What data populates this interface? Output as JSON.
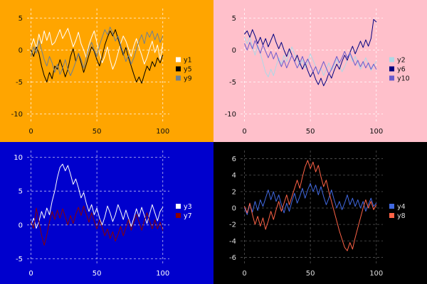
{
  "shared_x": [
    0,
    2,
    4,
    6,
    8,
    10,
    12,
    14,
    16,
    18,
    20,
    22,
    24,
    26,
    28,
    30,
    32,
    34,
    36,
    38,
    40,
    42,
    44,
    46,
    48,
    50,
    52,
    54,
    56,
    58,
    60,
    62,
    64,
    66,
    68,
    70,
    72,
    74,
    76,
    78,
    80,
    82,
    84,
    86,
    88,
    90,
    92,
    94,
    96,
    98,
    100
  ],
  "chart_data": [
    {
      "type": "line",
      "position": "top-left",
      "title": "",
      "xlabel": "",
      "ylabel": "",
      "bg": "#FFA500",
      "grid_color": "rgba(255,255,255,0.9)",
      "tick_color": "#111111",
      "legend_text_color": "#111111",
      "xlim": [
        -3,
        105
      ],
      "ylim": [
        -11.5,
        6.5
      ],
      "xticks": [
        0,
        50,
        100
      ],
      "yticks": [
        5,
        0,
        -5,
        -10
      ],
      "grid": true,
      "legend_position": "right",
      "series": [
        {
          "name": "y1",
          "color": "#FFFFFF",
          "values": [
            0.5,
            1.8,
            0.2,
            2.5,
            1.0,
            3.0,
            1.5,
            2.8,
            0.8,
            1.2,
            2.2,
            3.2,
            1.8,
            2.6,
            3.4,
            2.0,
            0.5,
            1.5,
            2.8,
            1.0,
            0.0,
            -1.2,
            0.8,
            2.0,
            3.0,
            1.2,
            -0.5,
            -2.0,
            -1.0,
            0.5,
            -1.5,
            -3.0,
            -2.0,
            -0.5,
            1.0,
            2.2,
            1.4,
            0.2,
            -1.0,
            0.6,
            1.8,
            0.4,
            -0.8,
            -2.2,
            -1.2,
            0.2,
            1.4,
            -0.4,
            0.8,
            -1.5,
            1.0
          ]
        },
        {
          "name": "y5",
          "color": "#000000",
          "values": [
            0.0,
            -1.0,
            0.5,
            -0.5,
            -2.5,
            -4.0,
            -5.0,
            -3.5,
            -4.5,
            -2.5,
            -3.0,
            -1.5,
            -2.8,
            -4.2,
            -3.0,
            -1.0,
            0.2,
            -1.8,
            -0.5,
            -2.0,
            -3.5,
            -2.2,
            -0.8,
            0.5,
            -0.2,
            -1.5,
            -2.5,
            -1.0,
            0.8,
            2.0,
            3.0,
            2.2,
            3.2,
            1.8,
            0.5,
            -0.8,
            0.4,
            -1.2,
            -2.5,
            -3.8,
            -5.0,
            -4.2,
            -5.2,
            -3.8,
            -2.5,
            -3.2,
            -1.8,
            -2.6,
            -1.2,
            -2.0,
            -0.8
          ]
        },
        {
          "name": "y9",
          "color": "#708090",
          "values": [
            -1.0,
            0.5,
            -0.5,
            1.5,
            0.0,
            -1.5,
            -2.5,
            -1.0,
            -2.0,
            -3.5,
            -2.2,
            -3.8,
            -2.8,
            -1.5,
            -3.0,
            -4.0,
            -3.0,
            -1.8,
            -0.5,
            -1.5,
            -2.8,
            -1.2,
            0.2,
            1.2,
            0.0,
            -1.0,
            0.8,
            2.0,
            3.2,
            2.4,
            3.6,
            2.6,
            1.4,
            2.2,
            0.8,
            -0.5,
            -1.8,
            -0.8,
            -2.2,
            -1.2,
            0.2,
            1.4,
            2.4,
            1.0,
            2.8,
            2.0,
            3.0,
            1.6,
            2.6,
            1.2,
            2.2
          ]
        }
      ]
    },
    {
      "type": "line",
      "position": "top-right",
      "title": "",
      "xlabel": "",
      "ylabel": "",
      "bg": "#FFC0CB",
      "grid_color": "rgba(255,255,255,0.95)",
      "tick_color": "#111111",
      "legend_text_color": "#111111",
      "xlim": [
        -3,
        105
      ],
      "ylim": [
        -11.5,
        6.5
      ],
      "xticks": [
        0,
        50,
        100
      ],
      "yticks": [
        5,
        0,
        -5,
        -10
      ],
      "grid": true,
      "legend_position": "right",
      "series": [
        {
          "name": "y2",
          "color": "#ADD8E6",
          "values": [
            2.0,
            1.0,
            2.2,
            0.5,
            -0.8,
            0.8,
            -0.5,
            -2.0,
            -3.5,
            -4.2,
            -3.0,
            -4.0,
            -2.5,
            -1.2,
            -2.2,
            -0.8,
            -1.8,
            -0.5,
            0.5,
            -0.6,
            -1.5,
            -2.5,
            -1.5,
            -2.8,
            -1.8,
            -0.6,
            -1.6,
            -2.6,
            -3.6,
            -2.8,
            -4.0,
            -3.0,
            -2.0,
            -3.2,
            -2.4,
            -1.4,
            -2.4,
            -3.4,
            -2.6,
            -1.6,
            -0.6,
            -1.8,
            -1.0,
            -2.0,
            -3.0,
            -2.2,
            -1.2,
            -2.2,
            -3.2,
            -2.4,
            -1.8
          ]
        },
        {
          "name": "y6",
          "color": "#000080",
          "values": [
            2.5,
            3.0,
            2.0,
            3.2,
            2.2,
            1.0,
            2.0,
            0.8,
            1.8,
            0.5,
            1.5,
            2.5,
            1.2,
            0.2,
            1.2,
            0.0,
            -1.0,
            0.2,
            -0.8,
            -1.8,
            -0.8,
            -2.0,
            -3.0,
            -2.0,
            -3.2,
            -4.2,
            -3.4,
            -4.6,
            -5.4,
            -4.4,
            -5.6,
            -4.8,
            -3.6,
            -4.4,
            -3.2,
            -2.2,
            -3.0,
            -1.8,
            -0.8,
            -1.6,
            -0.4,
            0.6,
            -0.6,
            0.4,
            1.4,
            0.4,
            1.6,
            0.6,
            1.8,
            4.8,
            4.4
          ]
        },
        {
          "name": "y10",
          "color": "#6A5ACD",
          "values": [
            1.0,
            0.0,
            1.2,
            0.2,
            1.5,
            0.5,
            -0.5,
            0.8,
            -0.2,
            -1.2,
            -0.2,
            -1.4,
            -0.4,
            -1.6,
            -2.6,
            -1.6,
            -2.8,
            -1.8,
            -0.8,
            -1.8,
            -2.8,
            -2.0,
            -1.0,
            -2.2,
            -1.4,
            -2.4,
            -3.4,
            -2.6,
            -3.8,
            -2.8,
            -1.8,
            -2.8,
            -3.8,
            -3.0,
            -2.0,
            -1.0,
            -2.0,
            -1.2,
            -0.2,
            -1.2,
            -0.4,
            -1.4,
            -2.4,
            -1.6,
            -2.6,
            -1.8,
            -2.8,
            -2.0,
            -3.0,
            -2.2,
            -3.0
          ]
        }
      ]
    },
    {
      "type": "line",
      "position": "bottom-left",
      "title": "",
      "xlabel": "",
      "ylabel": "",
      "bg": "#0000CD",
      "grid_color": "rgba(255,255,255,0.75)",
      "tick_color": "#FFFFFF",
      "legend_text_color": "#FFFFFF",
      "xlim": [
        -3,
        105
      ],
      "ylim": [
        -6,
        11
      ],
      "xticks": [
        0,
        50,
        100
      ],
      "yticks": [
        10,
        5,
        0,
        -5
      ],
      "grid": true,
      "legend_position": "right",
      "series": [
        {
          "name": "y3",
          "color": "#FFFFFF",
          "values": [
            0.0,
            1.0,
            -0.5,
            0.5,
            2.0,
            1.0,
            2.5,
            1.5,
            3.5,
            5.0,
            7.0,
            8.5,
            9.0,
            8.0,
            8.8,
            7.5,
            6.0,
            6.8,
            5.5,
            4.0,
            4.8,
            3.2,
            2.0,
            3.0,
            1.5,
            2.5,
            1.0,
            0.0,
            1.2,
            2.8,
            1.8,
            0.5,
            1.5,
            3.0,
            2.0,
            0.8,
            2.2,
            1.0,
            -0.2,
            1.0,
            2.4,
            1.2,
            2.6,
            1.4,
            0.2,
            1.6,
            3.0,
            1.8,
            0.6,
            2.0,
            2.6
          ]
        },
        {
          "name": "y7",
          "color": "#8B0000",
          "values": [
            0.5,
            -0.5,
            2.5,
            0.5,
            -1.5,
            -3.0,
            -1.5,
            0.5,
            2.0,
            0.8,
            2.2,
            1.0,
            2.4,
            1.2,
            0.0,
            1.4,
            0.2,
            1.6,
            2.6,
            1.4,
            2.8,
            1.6,
            0.4,
            1.8,
            0.6,
            -0.6,
            0.8,
            -0.4,
            -1.6,
            -0.6,
            -2.0,
            -1.0,
            -2.4,
            -1.4,
            -0.2,
            -1.6,
            -0.4,
            0.8,
            -0.8,
            0.4,
            1.6,
            0.4,
            -0.8,
            0.6,
            1.8,
            0.6,
            -0.6,
            0.8,
            -0.6,
            0.4,
            -0.8
          ]
        }
      ]
    },
    {
      "type": "line",
      "position": "bottom-right",
      "title": "",
      "xlabel": "",
      "ylabel": "",
      "bg": "#000000",
      "grid_color": "#555555",
      "tick_color": "#DDDDDD",
      "legend_text_color": "#DDDDDD",
      "xlim": [
        -3,
        105
      ],
      "ylim": [
        -7,
        7
      ],
      "xticks": [
        0,
        50,
        100
      ],
      "yticks": [
        6,
        4,
        2,
        0,
        -2,
        -4,
        -6
      ],
      "grid": true,
      "legend_position": "right",
      "series": [
        {
          "name": "y4",
          "color": "#4169E1",
          "values": [
            0.0,
            -0.8,
            0.5,
            -0.5,
            0.8,
            -0.3,
            1.0,
            0.2,
            1.2,
            2.2,
            1.0,
            2.0,
            0.8,
            1.6,
            0.4,
            -0.6,
            0.6,
            -0.4,
            0.8,
            1.8,
            0.6,
            1.4,
            2.4,
            1.2,
            2.2,
            3.0,
            2.0,
            2.8,
            1.6,
            2.6,
            1.4,
            0.4,
            1.2,
            2.2,
            1.0,
            0.0,
            0.8,
            -0.2,
            0.6,
            1.6,
            0.4,
            1.2,
            0.2,
            1.0,
            0.0,
            0.8,
            -0.4,
            0.4,
            1.2,
            0.2,
            0.6
          ]
        },
        {
          "name": "y8",
          "color": "#FF6347",
          "values": [
            0.2,
            -0.6,
            0.6,
            -0.8,
            -2.0,
            -1.0,
            -2.2,
            -1.2,
            -2.6,
            -1.6,
            -0.4,
            -1.4,
            -0.2,
            0.8,
            -0.4,
            0.6,
            1.6,
            0.4,
            1.4,
            2.4,
            3.4,
            2.4,
            3.8,
            5.0,
            5.8,
            4.8,
            5.6,
            4.4,
            5.2,
            3.8,
            2.6,
            3.4,
            2.0,
            0.8,
            -0.4,
            -1.6,
            -2.8,
            -3.8,
            -4.8,
            -5.2,
            -4.2,
            -5.0,
            -3.6,
            -2.4,
            -1.2,
            0.0,
            1.0,
            0.0,
            0.8,
            -0.2,
            0.4
          ]
        }
      ]
    }
  ]
}
